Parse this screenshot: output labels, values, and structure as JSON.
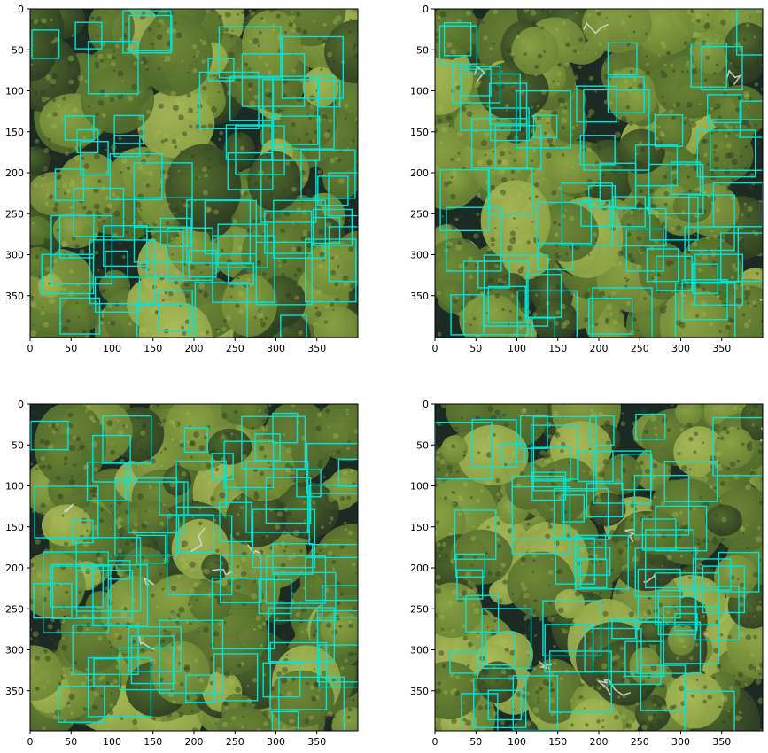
{
  "figure": {
    "panel_count": 4,
    "box_color": "#00e5d8",
    "canopy_colors": {
      "dark_gap": "#1c2a24",
      "shadow": "#2c3b22",
      "crown_dark": "#4f6a2c",
      "crown_mid": "#6b8534",
      "crown_light": "#8ea546",
      "highlight": "#aebd5a",
      "dead_branch": "#d9dccf"
    }
  },
  "panels": [
    {
      "name": "top-left",
      "x_ticks": [
        "0",
        "50",
        "100",
        "150",
        "200",
        "250",
        "300",
        "350"
      ],
      "y_ticks": [
        "0",
        "50",
        "100",
        "150",
        "200",
        "250",
        "300",
        "350"
      ]
    },
    {
      "name": "top-right",
      "x_ticks": [
        "0",
        "50",
        "100",
        "150",
        "200",
        "250",
        "300",
        "350"
      ],
      "y_ticks": [
        "0",
        "50",
        "100",
        "150",
        "200",
        "250",
        "300",
        "350"
      ]
    },
    {
      "name": "bottom-left",
      "x_ticks": [
        "0",
        "50",
        "100",
        "150",
        "200",
        "250",
        "300",
        "350"
      ],
      "y_ticks": [
        "0",
        "50",
        "100",
        "150",
        "200",
        "250",
        "300",
        "350"
      ]
    },
    {
      "name": "bottom-right",
      "x_ticks": [
        "0",
        "50",
        "100",
        "150",
        "200",
        "250",
        "300",
        "350"
      ],
      "y_ticks": [
        "0",
        "50",
        "100",
        "150",
        "200",
        "250",
        "300",
        "350"
      ]
    }
  ]
}
